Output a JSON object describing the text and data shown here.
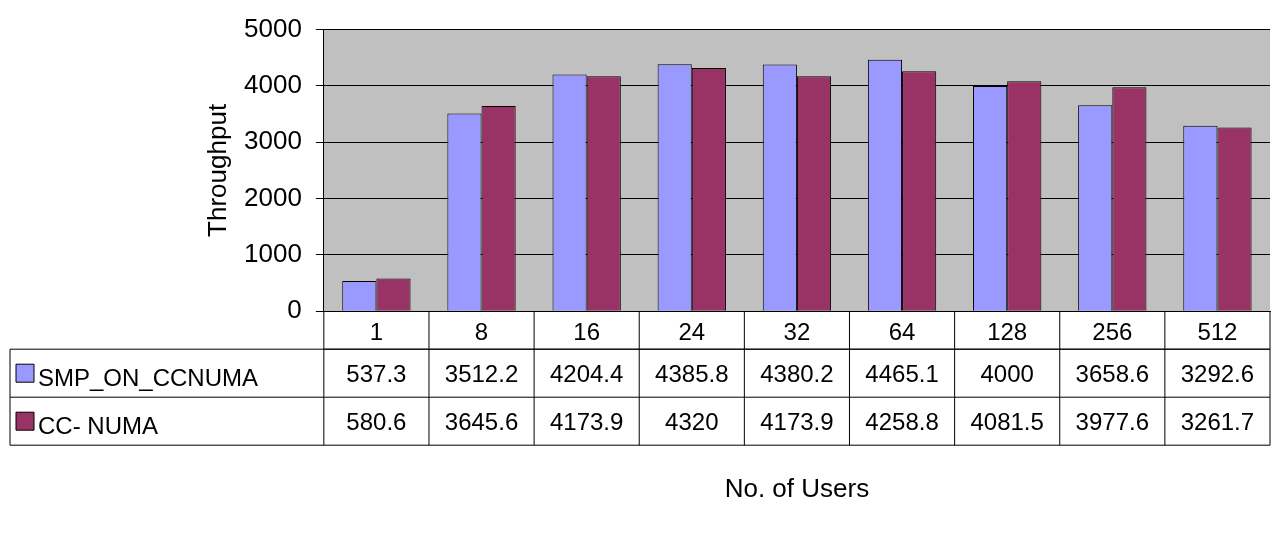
{
  "chart_data": {
    "type": "bar",
    "xlabel": "No. of Users",
    "ylabel": "Throughput",
    "categories": [
      "1",
      "8",
      "16",
      "24",
      "32",
      "64",
      "128",
      "256",
      "512"
    ],
    "series": [
      {
        "name": "SMP_ON_CCNUMA",
        "color": "#9999ff",
        "values": [
          537.3,
          3512.2,
          4204.4,
          4385.8,
          4380.2,
          4465.1,
          4000,
          3658.6,
          3292.6
        ]
      },
      {
        "name": "CC- NUMA",
        "color": "#993366",
        "values": [
          580.6,
          3645.6,
          4173.9,
          4320,
          4173.9,
          4258.8,
          4081.5,
          3977.6,
          3261.7
        ]
      }
    ],
    "ylim": [
      0,
      5000
    ],
    "yticks": [
      0,
      1000,
      2000,
      3000,
      4000,
      5000
    ],
    "grid": "y",
    "legend": "bottom",
    "data_labels": true
  }
}
